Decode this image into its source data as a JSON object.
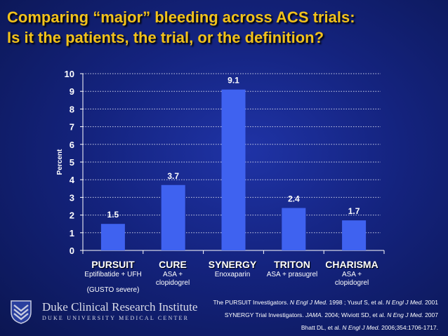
{
  "title": {
    "line1": "Comparing “major” bleeding across ACS trials:",
    "line2": "Is it the patients, the trial, or the definition?"
  },
  "colors": {
    "title": "#f2c21b",
    "bar": "#3f62f0",
    "text": "#ffffff"
  },
  "chart_data": {
    "type": "bar",
    "categories": [
      "PURSUIT",
      "CURE",
      "SYNERGY",
      "TRITON",
      "CHARISMA"
    ],
    "values": [
      1.5,
      3.7,
      9.1,
      2.4,
      1.7
    ],
    "value_labels": [
      "1.5",
      "3.7",
      "9.1",
      "2.4",
      "1.7"
    ],
    "yticks": [
      "0",
      "1",
      "2",
      "3",
      "4",
      "5",
      "6",
      "7",
      "8",
      "9",
      "10"
    ],
    "ylim": [
      0,
      10
    ],
    "ylabel": "Percent",
    "xlabel": "",
    "grid": true
  },
  "treatments": {
    "pursuit_line1": "Eptifibatide + UFH",
    "pursuit_line2": "(GUSTO severe)",
    "cure_line1": "ASA +",
    "cure_line2": "clopidogrel",
    "synergy": "Enoxaparin",
    "triton": "ASA + prasugrel",
    "charisma_line1": "ASA +",
    "charisma_line2": "clopidogrel"
  },
  "logo": {
    "name": "Duke Clinical Research Institute",
    "sub": "DUKE UNIVERSITY MEDICAL CENTER",
    "icon": "duke-chevron-icon"
  },
  "references": {
    "r1_a": "The PURSUIT Investigators. ",
    "r1_b": "N Engl J Med.",
    "r1_c": " 1998 ; Yusuf S, et al. ",
    "r1_d": "N Engl J Med.",
    "r1_e": " 2001",
    "r2_a": "SYNERGY Trial Investigators. ",
    "r2_b": "JAMA.",
    "r2_c": " 2004; Wiviott SD, et al. ",
    "r2_d": "N Eng J Med.",
    "r2_e": " 2007",
    "r3_a": "Bhatt DL, et al. ",
    "r3_b": "N Engl J Med.",
    "r3_c": " 2006;354:1706-1717."
  }
}
